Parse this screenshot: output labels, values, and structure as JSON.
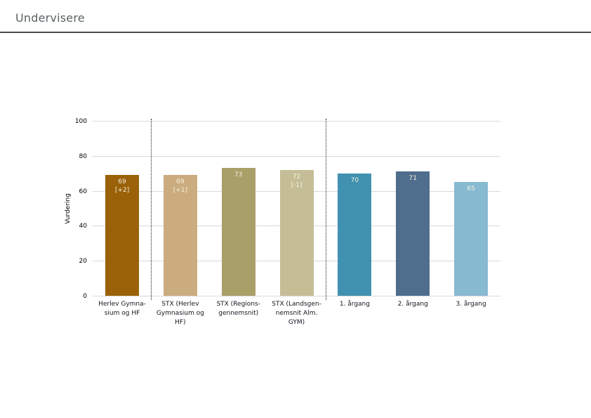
{
  "page": {
    "title": "Undervisere"
  },
  "chart_data": {
    "type": "bar",
    "title": "Undervisere",
    "ylabel": "Vurdering",
    "xlabel": "",
    "ylim": [
      0,
      100
    ],
    "yticks": [
      0,
      20,
      40,
      60,
      80,
      100
    ],
    "grid": "horizontal",
    "legend": "none",
    "categories": [
      "Herlev Gymnasium og HF",
      "STX (Herlev Gymnasium og HF)",
      "STX (Regionsgennemsnit)",
      "STX (Landsgennemsnit Alm. GYM)",
      "1. årgang",
      "2. årgang",
      "3. årgang"
    ],
    "category_lines": [
      [
        "Herlev Gymna-",
        "sium og HF"
      ],
      [
        "STX (Herlev",
        "Gymnasium og",
        "HF)"
      ],
      [
        "STX (Regions-",
        "gennemsnit)"
      ],
      [
        "STX (Landsgen-",
        "nemsnit Alm.",
        "GYM)"
      ],
      [
        "1. årgang"
      ],
      [
        "2. årgang"
      ],
      [
        "3. årgang"
      ]
    ],
    "values": [
      69,
      69,
      73,
      72,
      70,
      71,
      65
    ],
    "change_labels": [
      "[+2]",
      "[+1]",
      "",
      "[-1]",
      "",
      "",
      ""
    ],
    "bar_colors": [
      "#9a6109",
      "#cbac7f",
      "#a99f69",
      "#c5bd96",
      "#4191b1",
      "#4f6d8d",
      "#88bad1"
    ],
    "value_label_color": "#f6f1df",
    "separators_after_index": [
      0,
      3
    ]
  }
}
